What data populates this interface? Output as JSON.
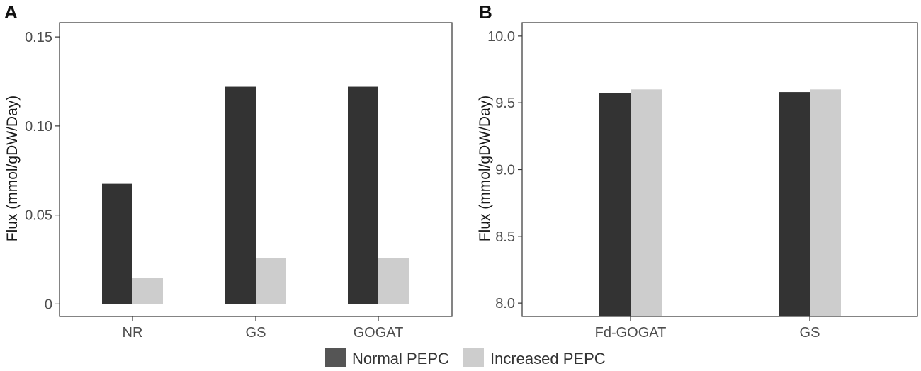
{
  "colors": {
    "normal": "#333333",
    "increased": "#cdcdcd",
    "axis": "#333333",
    "text": "#4d4d4d"
  },
  "legend": {
    "items": [
      {
        "label": "Normal PEPC",
        "color": "#555555"
      },
      {
        "label": "Increased PEPC",
        "color": "#cdcdcd"
      }
    ],
    "position": "bottom"
  },
  "chart_data": [
    {
      "panel": "A",
      "type": "bar",
      "title": "",
      "xlabel": "",
      "ylabel": "Flux (mmol/gDW/Day)",
      "categories": [
        "NR",
        "GS",
        "GOGAT"
      ],
      "series": [
        {
          "name": "Normal PEPC",
          "values": [
            0.0675,
            0.122,
            0.122
          ]
        },
        {
          "name": "Increased PEPC",
          "values": [
            0.0145,
            0.026,
            0.026
          ]
        }
      ],
      "ylim": [
        -0.007,
        0.158
      ],
      "yticks": [
        0,
        0.05,
        0.1,
        0.15
      ],
      "ytick_labels": [
        "0",
        "0.05",
        "0.10",
        "0.15"
      ],
      "grid": false
    },
    {
      "panel": "B",
      "type": "bar",
      "title": "",
      "xlabel": "",
      "ylabel": "Flux (mmol/gDW/Day)",
      "categories": [
        "Fd-GOGAT",
        "GS"
      ],
      "series": [
        {
          "name": "Normal PEPC",
          "values": [
            9.575,
            9.58
          ]
        },
        {
          "name": "Increased PEPC",
          "values": [
            9.6,
            9.6
          ]
        }
      ],
      "ylim": [
        7.9,
        10.1
      ],
      "yticks": [
        8.0,
        8.5,
        9.0,
        9.5,
        10.0
      ],
      "ytick_labels": [
        "8.0",
        "8.5",
        "9.0",
        "9.5",
        "10.0"
      ],
      "grid": false
    }
  ]
}
